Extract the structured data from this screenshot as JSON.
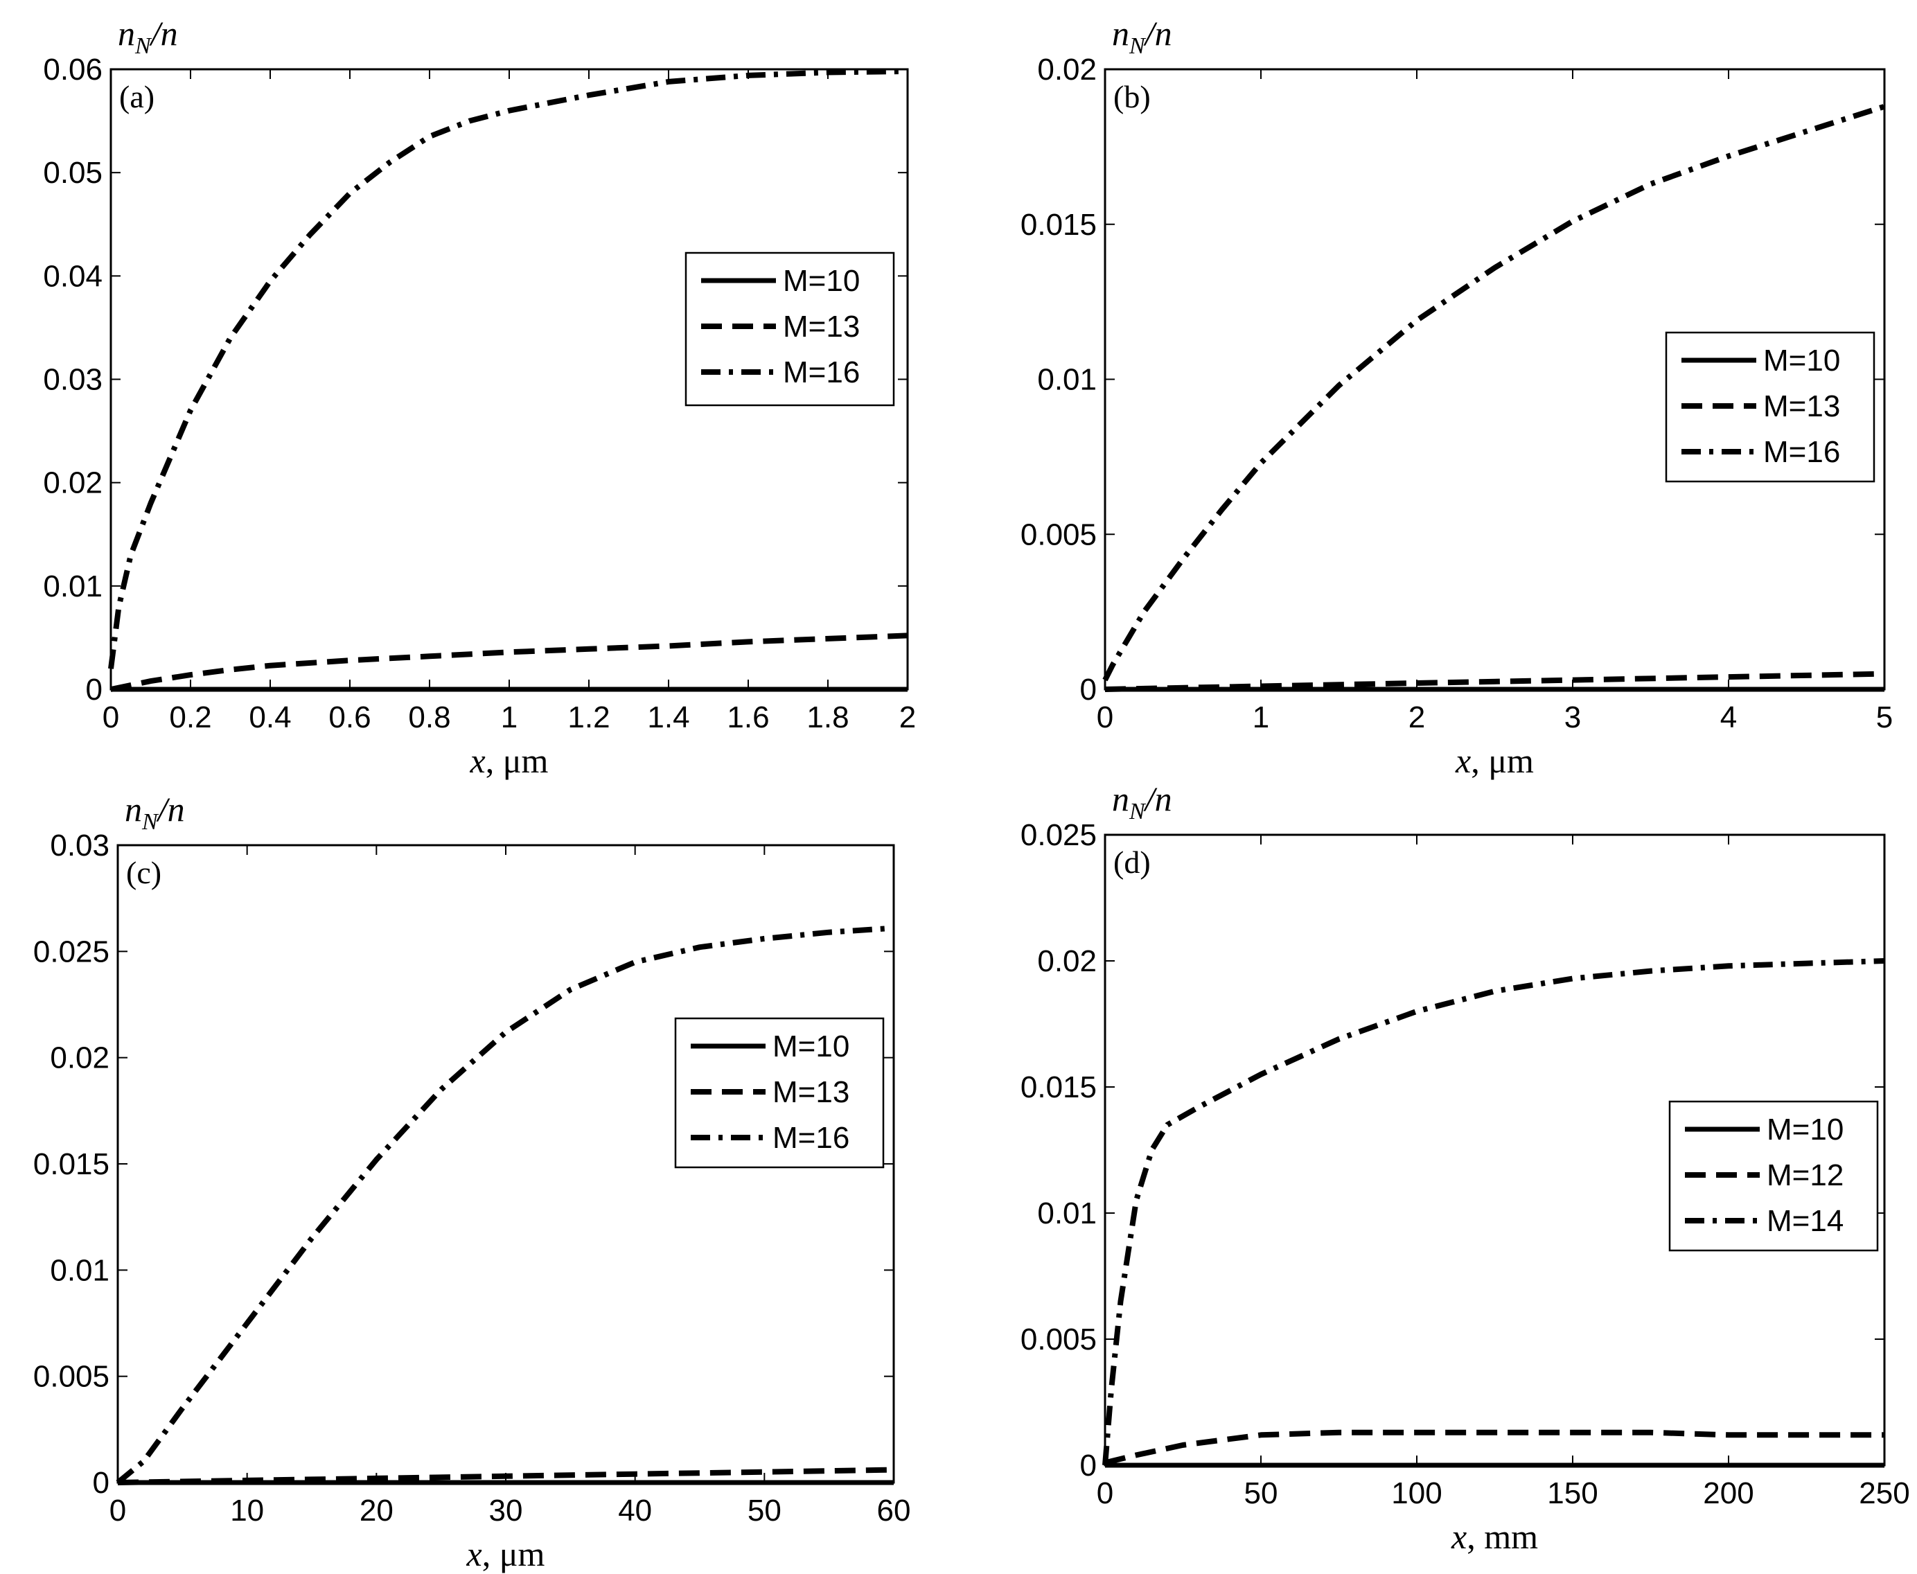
{
  "chart_data": [
    {
      "type": "line",
      "panel_label": "(a)",
      "ylabel": {
        "base": "n",
        "sub": "N",
        "tail": "/n"
      },
      "xlabel": {
        "var": "x",
        "unit": ", μm"
      },
      "xlim": [
        0,
        2
      ],
      "ylim": [
        0,
        0.06
      ],
      "xticks": [
        0,
        0.2,
        0.4,
        0.6,
        0.8,
        1,
        1.2,
        1.4,
        1.6,
        1.8,
        2
      ],
      "xtick_labels": [
        "0",
        "0.2",
        "0.4",
        "0.6",
        "0.8",
        "1",
        "1.2",
        "1.4",
        "1.6",
        "1.8",
        "2"
      ],
      "yticks": [
        0,
        0.01,
        0.02,
        0.03,
        0.04,
        0.05,
        0.06
      ],
      "ytick_labels": [
        "0",
        "0.01",
        "0.02",
        "0.03",
        "0.04",
        "0.05",
        "0.06"
      ],
      "legend_position": "right-middle",
      "series": [
        {
          "name": "M=10",
          "style": "solid",
          "x": [
            0,
            0.5,
            1,
            1.5,
            2
          ],
          "y": [
            0,
            0,
            0,
            0,
            0
          ]
        },
        {
          "name": "M=13",
          "style": "dashed",
          "x": [
            0,
            0.1,
            0.2,
            0.3,
            0.4,
            0.6,
            0.8,
            1.0,
            1.2,
            1.4,
            1.6,
            1.8,
            2.0
          ],
          "y": [
            0,
            0.0008,
            0.0014,
            0.0019,
            0.0023,
            0.0028,
            0.0032,
            0.0036,
            0.0039,
            0.0042,
            0.0046,
            0.0049,
            0.0052
          ]
        },
        {
          "name": "M=16",
          "style": "dashdot",
          "x": [
            0,
            0.02,
            0.05,
            0.1,
            0.2,
            0.3,
            0.4,
            0.5,
            0.6,
            0.7,
            0.8,
            0.9,
            1.0,
            1.2,
            1.4,
            1.6,
            1.8,
            2.0
          ],
          "y": [
            0.002,
            0.008,
            0.013,
            0.018,
            0.027,
            0.034,
            0.0395,
            0.044,
            0.048,
            0.051,
            0.0535,
            0.055,
            0.056,
            0.0575,
            0.0588,
            0.0594,
            0.0597,
            0.0598
          ]
        }
      ]
    },
    {
      "type": "line",
      "panel_label": "(b)",
      "ylabel": {
        "base": "n",
        "sub": "N",
        "tail": "/n"
      },
      "xlabel": {
        "var": "x",
        "unit": ", μm"
      },
      "xlim": [
        0,
        5
      ],
      "ylim": [
        0,
        0.02
      ],
      "xticks": [
        0,
        1,
        2,
        3,
        4,
        5
      ],
      "xtick_labels": [
        "0",
        "1",
        "2",
        "3",
        "4",
        "5"
      ],
      "yticks": [
        0,
        0.005,
        0.01,
        0.015,
        0.02
      ],
      "ytick_labels": [
        "0",
        "0.005",
        "0.01",
        "0.015",
        "0.02"
      ],
      "legend_position": "right-middle",
      "series": [
        {
          "name": "M=10",
          "style": "solid",
          "x": [
            0,
            1,
            2,
            3,
            4,
            5
          ],
          "y": [
            0,
            0,
            0,
            0,
            0,
            0
          ]
        },
        {
          "name": "M=13",
          "style": "dashed",
          "x": [
            0,
            1,
            2,
            3,
            4,
            5
          ],
          "y": [
            0,
            0.0001,
            0.0002,
            0.0003,
            0.0004,
            0.0005
          ]
        },
        {
          "name": "M=16",
          "style": "dashdot",
          "x": [
            0,
            0.05,
            0.25,
            0.5,
            0.75,
            1.0,
            1.5,
            2.0,
            2.5,
            3.0,
            3.5,
            4.0,
            4.5,
            5.0
          ],
          "y": [
            0.0003,
            0.0008,
            0.0025,
            0.0042,
            0.0058,
            0.0073,
            0.0098,
            0.0119,
            0.0136,
            0.0151,
            0.0163,
            0.0172,
            0.018,
            0.0188
          ]
        }
      ]
    },
    {
      "type": "line",
      "panel_label": "(c)",
      "ylabel": {
        "base": "n",
        "sub": "N",
        "tail": "/n"
      },
      "xlabel": {
        "var": "x",
        "unit": ", μm"
      },
      "xlim": [
        0,
        60
      ],
      "ylim": [
        0,
        0.03
      ],
      "xticks": [
        0,
        10,
        20,
        30,
        40,
        50,
        60
      ],
      "xtick_labels": [
        "0",
        "10",
        "20",
        "30",
        "40",
        "50",
        "60"
      ],
      "yticks": [
        0,
        0.005,
        0.01,
        0.015,
        0.02,
        0.025,
        0.03
      ],
      "ytick_labels": [
        "0",
        "0.005",
        "0.01",
        "0.015",
        "0.02",
        "0.025",
        "0.03"
      ],
      "legend_position": "right-middle",
      "series": [
        {
          "name": "M=10",
          "style": "solid",
          "x": [
            0,
            10,
            20,
            30,
            40,
            50,
            60
          ],
          "y": [
            0,
            0,
            0,
            0,
            0,
            0,
            0
          ]
        },
        {
          "name": "M=13",
          "style": "dashed",
          "x": [
            0,
            10,
            20,
            30,
            40,
            50,
            60
          ],
          "y": [
            0,
            0.0001,
            0.0002,
            0.0003,
            0.0004,
            0.0005,
            0.0006
          ]
        },
        {
          "name": "M=16",
          "style": "dashdot",
          "x": [
            0,
            2,
            5,
            10,
            15,
            20,
            25,
            30,
            35,
            40,
            45,
            50,
            55,
            60
          ],
          "y": [
            0,
            0.001,
            0.0035,
            0.0075,
            0.0115,
            0.0152,
            0.0185,
            0.0212,
            0.0232,
            0.0245,
            0.0252,
            0.0256,
            0.0259,
            0.0261
          ]
        }
      ]
    },
    {
      "type": "line",
      "panel_label": "(d)",
      "ylabel": {
        "base": "n",
        "sub": "N",
        "tail": "/n"
      },
      "xlabel": {
        "var": "x",
        "unit": ", mm"
      },
      "xlim": [
        0,
        250
      ],
      "ylim": [
        0,
        0.025
      ],
      "xticks": [
        0,
        50,
        100,
        150,
        200,
        250
      ],
      "xtick_labels": [
        "0",
        "50",
        "100",
        "150",
        "200",
        "250"
      ],
      "yticks": [
        0,
        0.005,
        0.01,
        0.015,
        0.02,
        0.025
      ],
      "ytick_labels": [
        "0",
        "0.005",
        "0.01",
        "0.015",
        "0.02",
        "0.025"
      ],
      "legend_position": "right-middle",
      "series": [
        {
          "name": "M=10",
          "style": "solid",
          "x": [
            0,
            50,
            100,
            150,
            200,
            250
          ],
          "y": [
            0,
            0,
            0,
            0,
            0,
            0
          ]
        },
        {
          "name": "M=12",
          "style": "dashed",
          "x": [
            0,
            10,
            25,
            50,
            75,
            100,
            125,
            150,
            175,
            200,
            225,
            250
          ],
          "y": [
            0.0001,
            0.0004,
            0.0008,
            0.0012,
            0.0013,
            0.0013,
            0.0013,
            0.0013,
            0.0013,
            0.0012,
            0.0012,
            0.0012
          ]
        },
        {
          "name": "M=14",
          "style": "dashdot",
          "x": [
            0,
            2,
            5,
            10,
            15,
            20,
            30,
            50,
            75,
            100,
            125,
            150,
            175,
            200,
            225,
            250
          ],
          "y": [
            0,
            0.003,
            0.0065,
            0.0105,
            0.0125,
            0.0135,
            0.0142,
            0.0155,
            0.0169,
            0.018,
            0.0188,
            0.0193,
            0.0196,
            0.0198,
            0.0199,
            0.02
          ]
        }
      ]
    }
  ]
}
